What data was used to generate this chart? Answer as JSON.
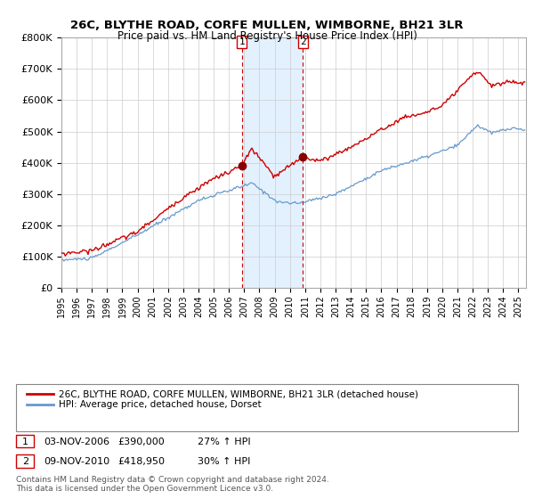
{
  "title": "26C, BLYTHE ROAD, CORFE MULLEN, WIMBORNE, BH21 3LR",
  "subtitle": "Price paid vs. HM Land Registry's House Price Index (HPI)",
  "legend_line1": "26C, BLYTHE ROAD, CORFE MULLEN, WIMBORNE, BH21 3LR (detached house)",
  "legend_line2": "HPI: Average price, detached house, Dorset",
  "footer1": "Contains HM Land Registry data © Crown copyright and database right 2024.",
  "footer2": "This data is licensed under the Open Government Licence v3.0.",
  "sale1_date": 2006.84,
  "sale1_price": 390000,
  "sale1_label": "1",
  "sale1_col1": "03-NOV-2006",
  "sale1_col2": "£390,000",
  "sale1_col3": "27% ↑ HPI",
  "sale2_date": 2010.85,
  "sale2_price": 418950,
  "sale2_label": "2",
  "sale2_col1": "09-NOV-2010",
  "sale2_col2": "£418,950",
  "sale2_col3": "30% ↑ HPI",
  "hpi_color": "#6699cc",
  "price_color": "#cc0000",
  "marker_color": "#880000",
  "shade_color": "#ddeeff",
  "vline_color": "#cc0000",
  "ylim": [
    0,
    800000
  ],
  "yticks": [
    0,
    100000,
    200000,
    300000,
    400000,
    500000,
    600000,
    700000,
    800000
  ],
  "ytick_labels": [
    "£0",
    "£100K",
    "£200K",
    "£300K",
    "£400K",
    "£500K",
    "£600K",
    "£700K",
    "£800K"
  ],
  "xlim_start": 1995.0,
  "xlim_end": 2025.5
}
